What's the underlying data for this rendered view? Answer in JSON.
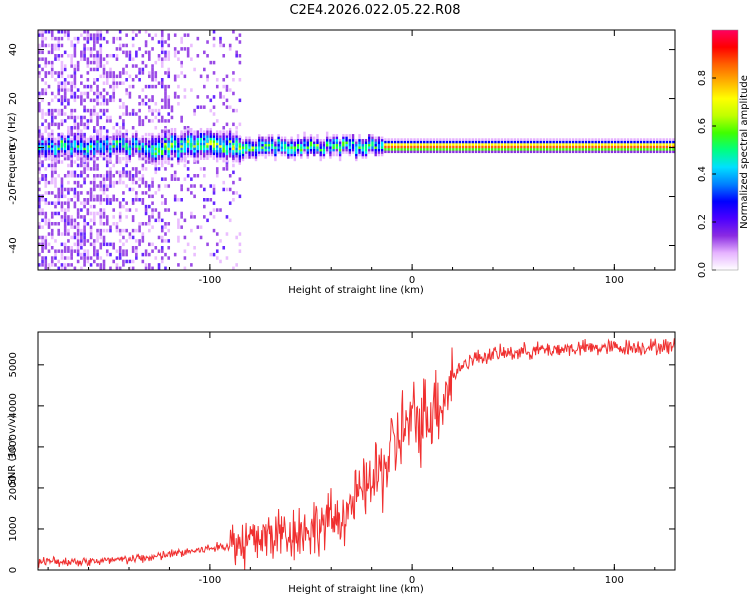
{
  "title": "C2E4.2026.022.05.22.R08",
  "chart_data": [
    {
      "type": "heatmap",
      "xlabel": "Height of straight line (km)",
      "ylabel": "Frequency (Hz)",
      "xlim": [
        -185,
        130
      ],
      "ylim": [
        -50,
        48
      ],
      "xticks": [
        -100,
        0,
        100
      ],
      "yticks": [
        -40,
        -20,
        0,
        20,
        40
      ],
      "colorbar": {
        "label": "Normalized spectral amplitude",
        "range": [
          0,
          1
        ],
        "ticks": [
          "0.0",
          "0.2",
          "0.4",
          "0.6",
          "0.8"
        ],
        "tick_values": [
          0.0,
          0.2,
          0.4,
          0.6,
          0.8
        ],
        "colors": [
          "#ffffff",
          "#e6b3ff",
          "#8a2be2",
          "#4b00ff",
          "#0000ff",
          "#0080ff",
          "#00e0ff",
          "#00ff80",
          "#40ff00",
          "#c0ff00",
          "#ffff00",
          "#ffb000",
          "#ff6000",
          "#ff0000",
          "#ff0060"
        ]
      },
      "band": {
        "description": "narrow signal band centered near 0 Hz",
        "center_hz": 0,
        "noise_region_x": [
          -185,
          -85
        ]
      }
    },
    {
      "type": "line",
      "xlabel": "Height of straight line (km)",
      "ylabel": "SNR (10 * v/v)",
      "xlim": [
        -185,
        130
      ],
      "ylim": [
        0,
        5800
      ],
      "xticks": [
        -100,
        0,
        100
      ],
      "yticks": [
        0,
        1000,
        2000,
        3000,
        4000,
        5000
      ],
      "color": "#f03030",
      "envelope": {
        "x": [
          -185,
          -150,
          -130,
          -110,
          -90,
          -70,
          -50,
          -35,
          -25,
          -15,
          -5,
          5,
          15,
          20,
          25,
          30,
          40,
          60,
          80,
          100,
          130
        ],
        "y": [
          200,
          220,
          300,
          450,
          600,
          850,
          1000,
          1300,
          1900,
          2400,
          3400,
          3700,
          4200,
          4700,
          5000,
          5150,
          5250,
          5350,
          5400,
          5420,
          5450
        ]
      }
    }
  ]
}
